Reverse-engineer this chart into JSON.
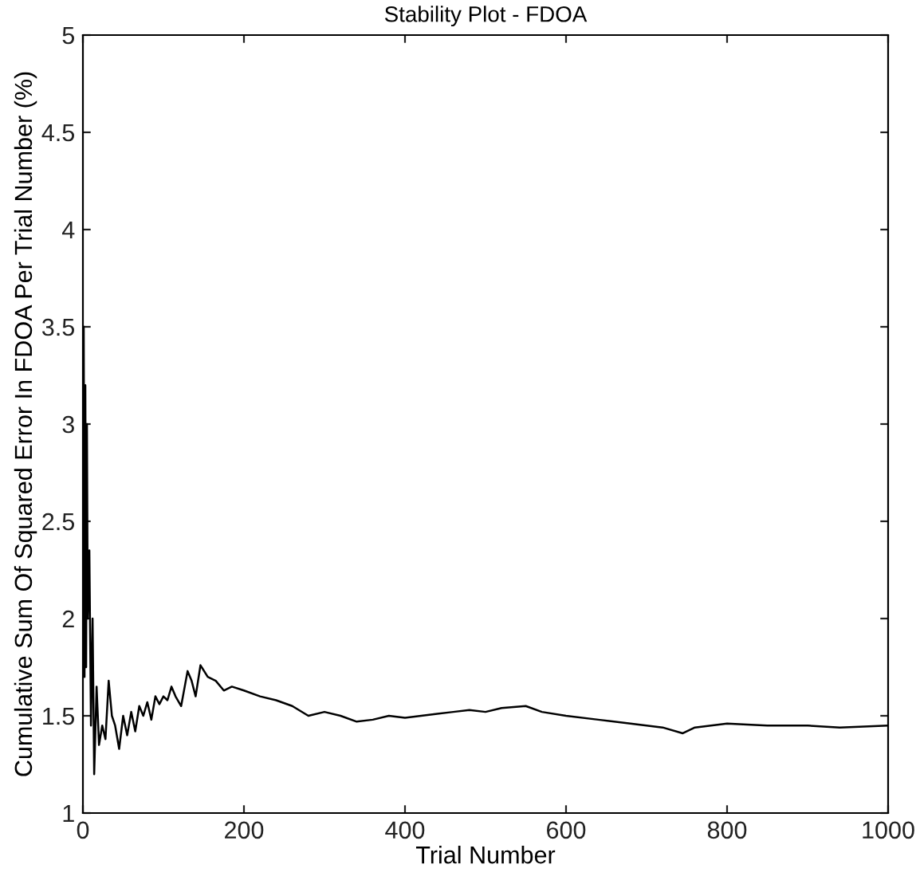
{
  "chart_data": {
    "type": "line",
    "title": "Stability Plot - FDOA",
    "xlabel": "Trial Number",
    "ylabel": "Cumulative Sum Of Squared Error In FDOA Per Trial Number (%)",
    "x": [
      1,
      2,
      3,
      4,
      5,
      6,
      8,
      10,
      12,
      14,
      17,
      20,
      24,
      28,
      32,
      36,
      40,
      45,
      50,
      55,
      60,
      65,
      70,
      75,
      80,
      85,
      90,
      95,
      100,
      105,
      110,
      115,
      122,
      130,
      135,
      140,
      146,
      155,
      165,
      175,
      185,
      200,
      220,
      240,
      260,
      280,
      300,
      320,
      340,
      360,
      380,
      400,
      420,
      440,
      460,
      480,
      500,
      520,
      550,
      570,
      600,
      640,
      680,
      720,
      745,
      760,
      800,
      850,
      900,
      940,
      1000
    ],
    "values": [
      3.5,
      1.7,
      3.2,
      1.75,
      3.0,
      2.0,
      2.35,
      1.45,
      2.0,
      1.2,
      1.65,
      1.35,
      1.45,
      1.38,
      1.68,
      1.5,
      1.45,
      1.33,
      1.5,
      1.4,
      1.52,
      1.42,
      1.55,
      1.5,
      1.57,
      1.48,
      1.6,
      1.56,
      1.6,
      1.58,
      1.65,
      1.6,
      1.55,
      1.73,
      1.68,
      1.6,
      1.76,
      1.7,
      1.68,
      1.63,
      1.65,
      1.63,
      1.6,
      1.58,
      1.55,
      1.5,
      1.52,
      1.5,
      1.47,
      1.48,
      1.5,
      1.49,
      1.5,
      1.51,
      1.52,
      1.53,
      1.52,
      1.54,
      1.55,
      1.52,
      1.5,
      1.48,
      1.46,
      1.44,
      1.41,
      1.44,
      1.46,
      1.45,
      1.45,
      1.44,
      1.45
    ],
    "color": "#000000",
    "xlim": [
      0,
      1000
    ],
    "ylim": [
      1,
      5
    ],
    "xticks": [
      0,
      200,
      400,
      600,
      800,
      1000
    ],
    "yticks": [
      1,
      1.5,
      2,
      2.5,
      3,
      3.5,
      4,
      4.5,
      5
    ],
    "grid": false,
    "marker": "none",
    "line_style": "solid"
  }
}
